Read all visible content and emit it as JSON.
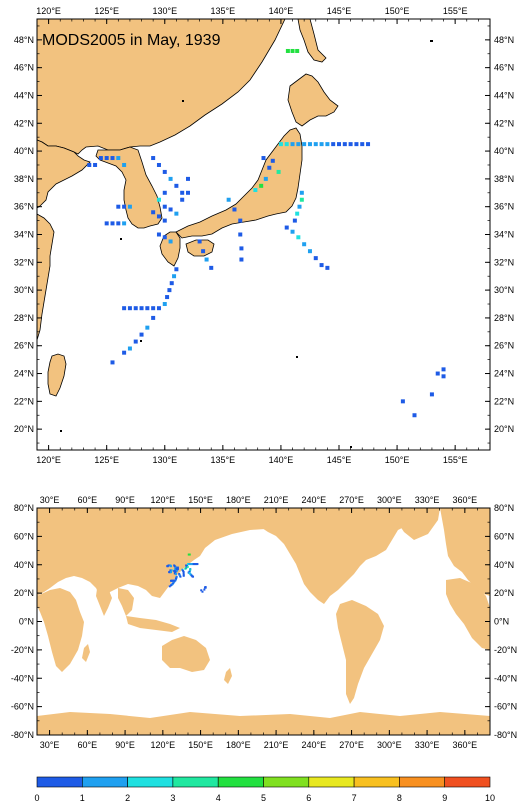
{
  "top_map": {
    "title": "MODS2005 in May, 1939",
    "lon_ticks": [
      "120°E",
      "125°E",
      "130°E",
      "135°E",
      "140°E",
      "145°E",
      "150°E",
      "155°E"
    ],
    "lat_ticks": [
      "48°N",
      "46°N",
      "44°N",
      "42°N",
      "40°N",
      "38°N",
      "36°N",
      "34°N",
      "32°N",
      "30°N",
      "28°N",
      "26°N",
      "24°N",
      "22°N",
      "20°N"
    ],
    "extent": {
      "lon_min": 119,
      "lon_max": 158,
      "lat_min": 18.5,
      "lat_max": 49.5
    }
  },
  "bottom_map": {
    "lon_ticks": [
      "30°E",
      "60°E",
      "90°E",
      "120°E",
      "150°E",
      "180°E",
      "210°E",
      "240°E",
      "270°E",
      "300°E",
      "330°E",
      "360°E"
    ],
    "lat_ticks": [
      "80°N",
      "60°N",
      "40°N",
      "20°N",
      "0°N",
      "-20°N",
      "-40°N",
      "-60°N",
      "-80°N"
    ],
    "extent": {
      "lon_min": 20,
      "lon_max": 380,
      "lat_min": -80,
      "lat_max": 80
    }
  },
  "colorbar": {
    "labels": [
      "0",
      "1",
      "2",
      "3",
      "4",
      "5",
      "6",
      "7",
      "8",
      "9",
      "10"
    ],
    "colors": [
      "#1E5BE6",
      "#1FA0F0",
      "#1FE0E0",
      "#20E8A0",
      "#22E040",
      "#80E020",
      "#E8E820",
      "#F8C020",
      "#F89020",
      "#F05020"
    ]
  },
  "colors": {
    "land": "#F2C27F",
    "ocean": "#FFFFFF"
  },
  "observations": [
    {
      "lon": 140.6,
      "lat": 47.2,
      "value": 4.5
    },
    {
      "lon": 141.0,
      "lat": 47.2,
      "value": 4.5
    },
    {
      "lon": 141.4,
      "lat": 47.2,
      "value": 4.5
    },
    {
      "lon": 124.5,
      "lat": 39.5,
      "value": 0.5
    },
    {
      "lon": 125.0,
      "lat": 39.5,
      "value": 0.5
    },
    {
      "lon": 125.5,
      "lat": 39.5,
      "value": 0.5
    },
    {
      "lon": 126.0,
      "lat": 39.5,
      "value": 1.5
    },
    {
      "lon": 123.5,
      "lat": 39.0,
      "value": 0.5
    },
    {
      "lon": 124.0,
      "lat": 39.0,
      "value": 0.5
    },
    {
      "lon": 126.5,
      "lat": 39.0,
      "value": 1.5
    },
    {
      "lon": 129.0,
      "lat": 39.5,
      "value": 0.5
    },
    {
      "lon": 129.5,
      "lat": 39.0,
      "value": 0.5
    },
    {
      "lon": 130.0,
      "lat": 38.5,
      "value": 0.5
    },
    {
      "lon": 130.5,
      "lat": 38.0,
      "value": 1.5
    },
    {
      "lon": 131.0,
      "lat": 37.5,
      "value": 0.5
    },
    {
      "lon": 131.5,
      "lat": 37.0,
      "value": 0.5
    },
    {
      "lon": 132.0,
      "lat": 38.0,
      "value": 0.5
    },
    {
      "lon": 132.0,
      "lat": 37.0,
      "value": 0.5
    },
    {
      "lon": 131.5,
      "lat": 36.5,
      "value": 0.5
    },
    {
      "lon": 130.0,
      "lat": 37.0,
      "value": 0.5
    },
    {
      "lon": 129.5,
      "lat": 36.5,
      "value": 2.5
    },
    {
      "lon": 130.0,
      "lat": 36.0,
      "value": 0.5
    },
    {
      "lon": 130.5,
      "lat": 35.8,
      "value": 0.5
    },
    {
      "lon": 131.0,
      "lat": 35.5,
      "value": 1.5
    },
    {
      "lon": 130.0,
      "lat": 35.0,
      "value": 0.5
    },
    {
      "lon": 129.5,
      "lat": 35.3,
      "value": 0.5
    },
    {
      "lon": 129.0,
      "lat": 35.6,
      "value": 0.5
    },
    {
      "lon": 126.0,
      "lat": 36.0,
      "value": 0.5
    },
    {
      "lon": 126.5,
      "lat": 36.0,
      "value": 0.5
    },
    {
      "lon": 127.0,
      "lat": 36.0,
      "value": 1.5
    },
    {
      "lon": 125.0,
      "lat": 34.8,
      "value": 0.5
    },
    {
      "lon": 125.5,
      "lat": 34.8,
      "value": 0.5
    },
    {
      "lon": 126.0,
      "lat": 34.8,
      "value": 0.5
    },
    {
      "lon": 126.5,
      "lat": 34.8,
      "value": 1.5
    },
    {
      "lon": 129.5,
      "lat": 34.0,
      "value": 0.5
    },
    {
      "lon": 130.0,
      "lat": 33.8,
      "value": 0.5
    },
    {
      "lon": 130.5,
      "lat": 33.5,
      "value": 1.5
    },
    {
      "lon": 131.0,
      "lat": 31.5,
      "value": 0.5
    },
    {
      "lon": 130.8,
      "lat": 31.0,
      "value": 1.5
    },
    {
      "lon": 130.6,
      "lat": 30.5,
      "value": 0.5
    },
    {
      "lon": 130.4,
      "lat": 30.0,
      "value": 0.5
    },
    {
      "lon": 130.2,
      "lat": 29.5,
      "value": 0.5
    },
    {
      "lon": 130.0,
      "lat": 29.0,
      "value": 1.5
    },
    {
      "lon": 126.5,
      "lat": 28.7,
      "value": 0.5
    },
    {
      "lon": 127.0,
      "lat": 28.7,
      "value": 0.5
    },
    {
      "lon": 127.5,
      "lat": 28.7,
      "value": 0.5
    },
    {
      "lon": 128.0,
      "lat": 28.7,
      "value": 0.5
    },
    {
      "lon": 128.5,
      "lat": 28.7,
      "value": 0.5
    },
    {
      "lon": 129.0,
      "lat": 28.7,
      "value": 0.5
    },
    {
      "lon": 129.5,
      "lat": 28.7,
      "value": 0.5
    },
    {
      "lon": 129.0,
      "lat": 28.0,
      "value": 0.5
    },
    {
      "lon": 128.5,
      "lat": 27.3,
      "value": 1.5
    },
    {
      "lon": 128.0,
      "lat": 26.8,
      "value": 0.5
    },
    {
      "lon": 127.5,
      "lat": 26.3,
      "value": 0.5
    },
    {
      "lon": 127.0,
      "lat": 25.8,
      "value": 1.5
    },
    {
      "lon": 126.5,
      "lat": 25.5,
      "value": 0.5
    },
    {
      "lon": 125.5,
      "lat": 24.8,
      "value": 0.5
    },
    {
      "lon": 133.0,
      "lat": 33.5,
      "value": 0.5
    },
    {
      "lon": 133.3,
      "lat": 32.8,
      "value": 0.5
    },
    {
      "lon": 133.6,
      "lat": 32.2,
      "value": 1.5
    },
    {
      "lon": 134.0,
      "lat": 31.6,
      "value": 0.5
    },
    {
      "lon": 135.5,
      "lat": 36.5,
      "value": 1.5
    },
    {
      "lon": 136.0,
      "lat": 35.8,
      "value": 0.5
    },
    {
      "lon": 136.5,
      "lat": 35.0,
      "value": 0.5
    },
    {
      "lon": 136.5,
      "lat": 34.0,
      "value": 0.5
    },
    {
      "lon": 136.6,
      "lat": 33.0,
      "value": 0.5
    },
    {
      "lon": 136.6,
      "lat": 32.2,
      "value": 0.5
    },
    {
      "lon": 137.8,
      "lat": 37.2,
      "value": 2.5
    },
    {
      "lon": 138.3,
      "lat": 37.5,
      "value": 4.5
    },
    {
      "lon": 138.7,
      "lat": 38.0,
      "value": 1.5
    },
    {
      "lon": 139.0,
      "lat": 38.8,
      "value": 0.5
    },
    {
      "lon": 139.3,
      "lat": 39.3,
      "value": 0.5
    },
    {
      "lon": 138.5,
      "lat": 39.5,
      "value": 0.5
    },
    {
      "lon": 139.8,
      "lat": 38.5,
      "value": 3.5
    },
    {
      "lon": 140.0,
      "lat": 40.5,
      "value": 2.5
    },
    {
      "lon": 140.5,
      "lat": 40.5,
      "value": 2.5
    },
    {
      "lon": 141.0,
      "lat": 40.5,
      "value": 1.5
    },
    {
      "lon": 141.5,
      "lat": 40.5,
      "value": 1.5
    },
    {
      "lon": 142.0,
      "lat": 40.5,
      "value": 1.5
    },
    {
      "lon": 142.5,
      "lat": 40.5,
      "value": 1.5
    },
    {
      "lon": 143.0,
      "lat": 40.5,
      "value": 1.5
    },
    {
      "lon": 143.5,
      "lat": 40.5,
      "value": 1.5
    },
    {
      "lon": 144.0,
      "lat": 40.5,
      "value": 1.5
    },
    {
      "lon": 144.5,
      "lat": 40.5,
      "value": 0.5
    },
    {
      "lon": 145.0,
      "lat": 40.5,
      "value": 0.5
    },
    {
      "lon": 145.5,
      "lat": 40.5,
      "value": 0.5
    },
    {
      "lon": 146.0,
      "lat": 40.5,
      "value": 0.5
    },
    {
      "lon": 146.5,
      "lat": 40.5,
      "value": 0.5
    },
    {
      "lon": 147.0,
      "lat": 40.5,
      "value": 0.5
    },
    {
      "lon": 147.5,
      "lat": 40.5,
      "value": 0.5
    },
    {
      "lon": 141.8,
      "lat": 37.0,
      "value": 1.5
    },
    {
      "lon": 141.8,
      "lat": 36.5,
      "value": 3.5
    },
    {
      "lon": 141.6,
      "lat": 36.0,
      "value": 1.5
    },
    {
      "lon": 141.4,
      "lat": 35.5,
      "value": 2.5
    },
    {
      "lon": 141.2,
      "lat": 35.0,
      "value": 0.5
    },
    {
      "lon": 140.5,
      "lat": 34.5,
      "value": 0.5
    },
    {
      "lon": 141.0,
      "lat": 34.2,
      "value": 1.5
    },
    {
      "lon": 141.5,
      "lat": 33.8,
      "value": 2.5
    },
    {
      "lon": 142.0,
      "lat": 33.3,
      "value": 1.5
    },
    {
      "lon": 142.5,
      "lat": 32.8,
      "value": 1.5
    },
    {
      "lon": 143.0,
      "lat": 32.3,
      "value": 0.5
    },
    {
      "lon": 143.5,
      "lat": 31.8,
      "value": 0.5
    },
    {
      "lon": 144.0,
      "lat": 31.6,
      "value": 0.5
    },
    {
      "lon": 150.5,
      "lat": 22.0,
      "value": 0.5
    },
    {
      "lon": 151.5,
      "lat": 21.0,
      "value": 0.5
    },
    {
      "lon": 153.0,
      "lat": 22.5,
      "value": 0.5
    },
    {
      "lon": 153.5,
      "lat": 24.0,
      "value": 0.5
    },
    {
      "lon": 154.0,
      "lat": 24.3,
      "value": 0.5
    },
    {
      "lon": 154.0,
      "lat": 23.8,
      "value": 0.5
    }
  ]
}
